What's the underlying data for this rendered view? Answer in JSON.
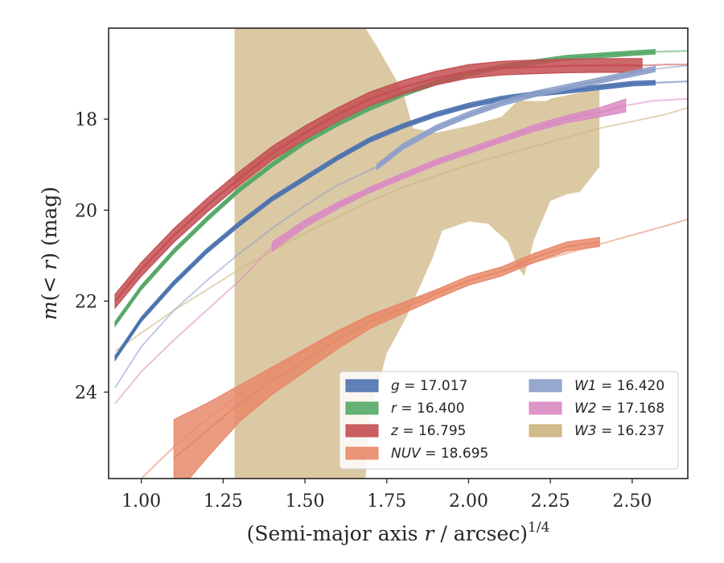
{
  "chart_data": {
    "type": "line",
    "xlabel": "(Semi-major axis r / arcsec)",
    "xlabel_parts": {
      "prefix": "(Semi-major axis ",
      "var": "r",
      "suffix": " / arcsec)",
      "exponent": "1/4"
    },
    "ylabel": "m(< r) (mag)",
    "ylabel_parts": {
      "m": "m",
      "open": "(",
      "lt": "< ",
      "r": "r",
      "close": ")",
      "unit": " (mag)"
    },
    "xlim": [
      0.9,
      2.67
    ],
    "ylim": [
      25.9,
      16.0
    ],
    "y_inverted": true,
    "x_ticks": [
      1.0,
      1.25,
      1.5,
      1.75,
      2.0,
      2.25,
      2.5
    ],
    "x_tick_labels": [
      "1.00",
      "1.25",
      "1.50",
      "1.75",
      "2.00",
      "2.25",
      "2.50"
    ],
    "y_ticks": [
      18,
      20,
      22,
      24
    ],
    "y_tick_labels": [
      "18",
      "20",
      "22",
      "24"
    ],
    "grid": false,
    "legend_position": "lower-right",
    "series": [
      {
        "name": "g = 17.017",
        "label_var": "g",
        "label_value": "= 17.017",
        "color": "#4c72b0",
        "x": [
          0.92,
          1.0,
          1.1,
          1.2,
          1.3,
          1.4,
          1.5,
          1.6,
          1.7,
          1.8,
          1.9,
          2.0,
          2.1,
          2.2,
          2.3,
          2.4,
          2.5,
          2.57,
          2.67
        ],
        "y": [
          23.25,
          22.4,
          21.6,
          20.9,
          20.3,
          19.75,
          19.3,
          18.85,
          18.45,
          18.15,
          17.9,
          17.7,
          17.55,
          17.45,
          17.38,
          17.3,
          17.22,
          17.2,
          17.17
        ],
        "band": 0.05,
        "fit_start": 2.57
      },
      {
        "name": "r = 16.400",
        "label_var": "r",
        "label_value": "= 16.400",
        "color": "#55a868",
        "x": [
          0.92,
          1.0,
          1.1,
          1.2,
          1.3,
          1.4,
          1.5,
          1.6,
          1.7,
          1.8,
          1.9,
          2.0,
          2.1,
          2.2,
          2.3,
          2.4,
          2.5,
          2.57,
          2.67
        ],
        "y": [
          22.5,
          21.7,
          20.9,
          20.2,
          19.55,
          19.0,
          18.5,
          18.1,
          17.75,
          17.45,
          17.2,
          17.0,
          16.85,
          16.75,
          16.65,
          16.6,
          16.55,
          16.52,
          16.5
        ],
        "band": 0.05,
        "fit_start": 2.57
      },
      {
        "name": "z = 16.795",
        "label_var": "z",
        "label_value": "= 16.795",
        "color": "#c44e52",
        "x": [
          0.92,
          1.0,
          1.1,
          1.2,
          1.3,
          1.4,
          1.5,
          1.6,
          1.7,
          1.8,
          1.9,
          2.0,
          2.1,
          2.2,
          2.3,
          2.4,
          2.53,
          2.6,
          2.67
        ],
        "y": [
          22.0,
          21.3,
          20.55,
          19.9,
          19.3,
          18.75,
          18.3,
          17.9,
          17.55,
          17.3,
          17.1,
          16.95,
          16.88,
          16.85,
          16.83,
          16.82,
          16.82,
          16.8,
          16.8
        ],
        "band": 0.15,
        "fit_start": 2.53
      },
      {
        "name": "NUV = 18.695",
        "label_var": "NUV",
        "label_value": "= 18.695",
        "color": "#e8896a",
        "x": [
          1.1,
          1.2,
          1.3,
          1.4,
          1.5,
          1.6,
          1.7,
          1.8,
          1.9,
          2.0,
          2.1,
          2.2,
          2.3,
          2.4
        ],
        "y": [
          25.45,
          24.85,
          24.25,
          23.75,
          23.3,
          22.85,
          22.45,
          22.15,
          21.85,
          21.55,
          21.35,
          21.05,
          20.8,
          20.7
        ],
        "band_widths": [
          0.85,
          0.6,
          0.4,
          0.3,
          0.25,
          0.2,
          0.15,
          0.12,
          0.1,
          0.1,
          0.1,
          0.1,
          0.1,
          0.1
        ],
        "fit_x": [
          1.0,
          1.1,
          1.2,
          1.3,
          1.4,
          1.5,
          1.6,
          1.7,
          1.8,
          1.9,
          2.0,
          2.1,
          2.2,
          2.3,
          2.4,
          2.5,
          2.6,
          2.67
        ],
        "fit_y": [
          25.9,
          25.2,
          24.6,
          24.05,
          23.55,
          23.1,
          22.7,
          22.35,
          22.05,
          21.8,
          21.55,
          21.35,
          21.15,
          20.95,
          20.75,
          20.55,
          20.35,
          20.2
        ]
      },
      {
        "name": "W1 = 16.420",
        "label_var": "W1",
        "label_value": "= 16.420",
        "color": "#8c9fc9",
        "x": [
          1.72,
          1.8,
          1.9,
          2.0,
          2.1,
          2.2,
          2.3,
          2.4,
          2.5,
          2.57
        ],
        "y": [
          19.05,
          18.6,
          18.2,
          17.9,
          17.65,
          17.45,
          17.3,
          17.15,
          17.0,
          16.9
        ],
        "band": 0.06,
        "fit_x": [
          0.92,
          1.0,
          1.1,
          1.2,
          1.3,
          1.4,
          1.5,
          1.6,
          1.72,
          1.8,
          1.9,
          2.0,
          2.1,
          2.2,
          2.3,
          2.4,
          2.5,
          2.57,
          2.67
        ],
        "fit_y": [
          23.9,
          23.0,
          22.2,
          21.55,
          20.95,
          20.4,
          19.9,
          19.45,
          19.05,
          18.6,
          18.2,
          17.9,
          17.65,
          17.45,
          17.3,
          17.15,
          17.0,
          16.9,
          16.82
        ]
      },
      {
        "name": "W2 = 17.168",
        "label_var": "W2",
        "label_value": "= 17.168",
        "color": "#da8bc3",
        "x": [
          1.4,
          1.5,
          1.6,
          1.7,
          1.8,
          1.9,
          2.0,
          2.1,
          2.2,
          2.3,
          2.4,
          2.48
        ],
        "y": [
          20.8,
          20.3,
          19.9,
          19.55,
          19.25,
          18.95,
          18.7,
          18.45,
          18.2,
          18.0,
          17.85,
          17.7
        ],
        "band_widths": [
          0.1,
          0.08,
          0.07,
          0.06,
          0.06,
          0.06,
          0.06,
          0.06,
          0.07,
          0.08,
          0.1,
          0.14
        ],
        "fit_x": [
          0.92,
          1.0,
          1.1,
          1.2,
          1.3,
          1.4,
          1.5,
          1.6,
          1.7,
          1.8,
          1.9,
          2.0,
          2.1,
          2.2,
          2.3,
          2.4,
          2.48,
          2.56,
          2.67
        ],
        "fit_y": [
          24.25,
          23.55,
          22.85,
          22.2,
          21.55,
          20.8,
          20.3,
          19.9,
          19.55,
          19.25,
          18.95,
          18.7,
          18.45,
          18.2,
          18.0,
          17.85,
          17.7,
          17.6,
          17.55
        ]
      },
      {
        "name": "W3 = 16.237",
        "label_var": "W3",
        "label_value": "= 16.237",
        "color": "#ccb27e",
        "band_polygon": [
          [
            1.285,
            16.0
          ],
          [
            1.685,
            16.0
          ],
          [
            1.72,
            16.4
          ],
          [
            1.8,
            17.4
          ],
          [
            1.83,
            18.2
          ],
          [
            1.9,
            18.3
          ],
          [
            2.0,
            18.15
          ],
          [
            2.1,
            17.95
          ],
          [
            2.15,
            17.6
          ],
          [
            2.24,
            17.6
          ],
          [
            2.25,
            17.55
          ],
          [
            2.35,
            17.4
          ],
          [
            2.4,
            17.35
          ],
          [
            2.4,
            19.05
          ],
          [
            2.34,
            19.6
          ],
          [
            2.3,
            19.65
          ],
          [
            2.25,
            19.8
          ],
          [
            2.2,
            20.65
          ],
          [
            2.17,
            21.45
          ],
          [
            2.15,
            21.25
          ],
          [
            2.12,
            20.7
          ],
          [
            2.06,
            20.3
          ],
          [
            2.0,
            20.25
          ],
          [
            1.92,
            20.45
          ],
          [
            1.89,
            21.05
          ],
          [
            1.81,
            22.35
          ],
          [
            1.75,
            23.15
          ],
          [
            1.7,
            24.5
          ],
          [
            1.685,
            25.9
          ],
          [
            1.285,
            25.9
          ]
        ],
        "fit_x": [
          0.92,
          1.0,
          1.1,
          1.2,
          1.3,
          1.4,
          1.5,
          1.6,
          1.7,
          1.8,
          1.9,
          2.0,
          2.1,
          2.2,
          2.3,
          2.4,
          2.5,
          2.6,
          2.67
        ],
        "fit_y": [
          23.1,
          22.7,
          22.2,
          21.75,
          21.3,
          20.9,
          20.5,
          20.15,
          19.8,
          19.5,
          19.25,
          19.0,
          18.8,
          18.6,
          18.4,
          18.2,
          18.05,
          17.9,
          17.75
        ]
      }
    ]
  }
}
